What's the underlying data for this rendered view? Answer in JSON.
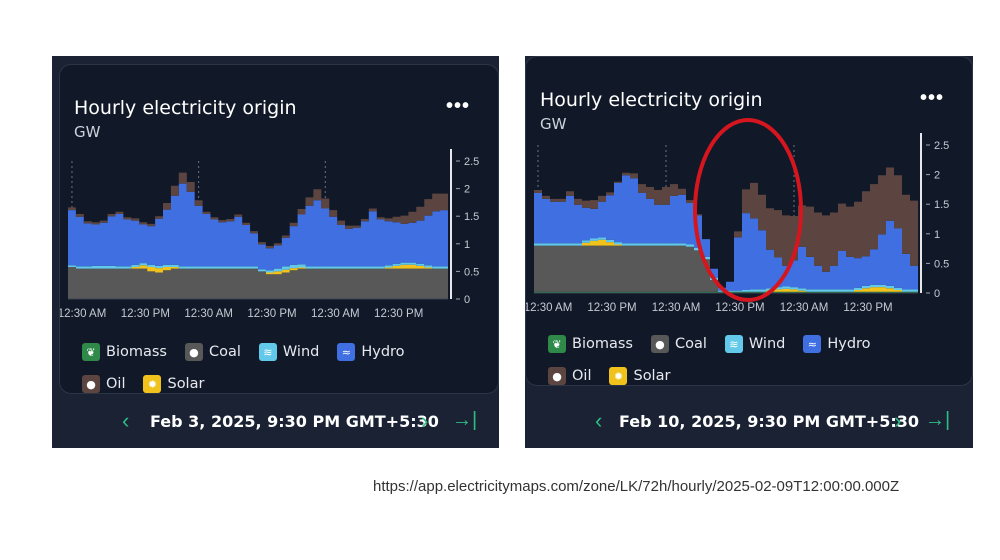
{
  "url": "https://app.electricitymaps.com/zone/LK/72h/hourly/2025-02-09T12:00:00.000Z",
  "legend": [
    {
      "name": "Biomass",
      "color": "#2f8a4a",
      "icon": "leaf-icon"
    },
    {
      "name": "Coal",
      "color": "#585858",
      "icon": "drop-icon"
    },
    {
      "name": "Wind",
      "color": "#62c9ea",
      "icon": "wind-icon"
    },
    {
      "name": "Hydro",
      "color": "#3f6fe0",
      "icon": "waves-icon"
    },
    {
      "name": "Oil",
      "color": "#5c4540",
      "icon": "drop-icon"
    },
    {
      "name": "Solar",
      "color": "#f1c21b",
      "icon": "sun-icon"
    }
  ],
  "panels": [
    {
      "title": "Hourly electricity origin",
      "unit": "GW",
      "more": "•••",
      "date": "Feb 3, 2025, 9:30 PM GMT+5:30",
      "prev": "‹",
      "next": "›",
      "last": "→|"
    },
    {
      "title": "Hourly electricity origin",
      "unit": "GW",
      "more": "•••",
      "date": "Feb 10, 2025, 9:30 PM GMT+5:30",
      "prev": "‹",
      "next": "›",
      "last": "→|"
    }
  ],
  "chart_data": [
    {
      "type": "area",
      "title": "Hourly electricity origin",
      "ylabel": "GW",
      "ylim": [
        0,
        2.5
      ],
      "yticks": [
        0,
        0.5,
        1,
        1.5,
        2,
        2.5
      ],
      "xticks": [
        "12:30 AM",
        "12:30 PM",
        "12:30 AM",
        "12:30 PM",
        "12:30 AM",
        "12:30 PM"
      ],
      "stack_order": [
        "Coal",
        "Solar",
        "Wind",
        "Hydro",
        "Oil"
      ],
      "series": [
        {
          "name": "Coal",
          "values": [
            0.58,
            0.55,
            0.55,
            0.55,
            0.55,
            0.55,
            0.55,
            0.55,
            0.55,
            0.55,
            0.5,
            0.48,
            0.52,
            0.55,
            0.55,
            0.55,
            0.55,
            0.55,
            0.55,
            0.55,
            0.55,
            0.55,
            0.55,
            0.55,
            0.5,
            0.45,
            0.45,
            0.48,
            0.52,
            0.55,
            0.55,
            0.55,
            0.55,
            0.55,
            0.55,
            0.55,
            0.55,
            0.55,
            0.55,
            0.55,
            0.55,
            0.55,
            0.55,
            0.55,
            0.55,
            0.55,
            0.55,
            0.55
          ]
        },
        {
          "name": "Solar",
          "values": [
            0,
            0,
            0,
            0,
            0,
            0,
            0,
            0,
            0.03,
            0.06,
            0.08,
            0.08,
            0.06,
            0.03,
            0,
            0,
            0,
            0,
            0,
            0,
            0,
            0,
            0,
            0,
            0,
            0.03,
            0.05,
            0.05,
            0.04,
            0.02,
            0,
            0,
            0,
            0,
            0,
            0,
            0,
            0,
            0,
            0,
            0.02,
            0.05,
            0.07,
            0.07,
            0.05,
            0.02,
            0,
            0
          ]
        },
        {
          "name": "Wind",
          "values": [
            0.03,
            0.04,
            0.04,
            0.05,
            0.05,
            0.05,
            0.04,
            0.04,
            0.04,
            0.04,
            0.04,
            0.04,
            0.04,
            0.04,
            0.04,
            0.04,
            0.04,
            0.04,
            0.04,
            0.04,
            0.04,
            0.04,
            0.04,
            0.04,
            0.04,
            0.04,
            0.05,
            0.06,
            0.06,
            0.06,
            0.04,
            0.04,
            0.04,
            0.04,
            0.04,
            0.04,
            0.04,
            0.04,
            0.04,
            0.04,
            0.04,
            0.04,
            0.04,
            0.04,
            0.04,
            0.04,
            0.04,
            0.04
          ]
        },
        {
          "name": "Hydro",
          "values": [
            1.0,
            0.9,
            0.78,
            0.75,
            0.78,
            0.9,
            0.95,
            0.85,
            0.8,
            0.7,
            0.7,
            0.85,
            1.0,
            1.25,
            1.5,
            1.35,
            1.1,
            0.95,
            0.85,
            0.8,
            0.82,
            0.9,
            0.75,
            0.6,
            0.45,
            0.4,
            0.42,
            0.52,
            0.7,
            0.9,
            1.1,
            1.2,
            1.05,
            0.9,
            0.75,
            0.68,
            0.7,
            0.82,
            1.0,
            0.85,
            0.8,
            0.75,
            0.7,
            0.72,
            0.78,
            0.9,
            1.0,
            1.02
          ]
        },
        {
          "name": "Oil",
          "values": [
            0.05,
            0.05,
            0.04,
            0.04,
            0.04,
            0.04,
            0.04,
            0.04,
            0.04,
            0.04,
            0.04,
            0.05,
            0.12,
            0.18,
            0.2,
            0.18,
            0.1,
            0.04,
            0.04,
            0.04,
            0.04,
            0.04,
            0.04,
            0.04,
            0.04,
            0.04,
            0.04,
            0.04,
            0.06,
            0.1,
            0.15,
            0.2,
            0.18,
            0.12,
            0.08,
            0.06,
            0.04,
            0.04,
            0.05,
            0.04,
            0.05,
            0.1,
            0.15,
            0.2,
            0.25,
            0.3,
            0.32,
            0.3
          ]
        }
      ]
    },
    {
      "type": "area",
      "title": "Hourly electricity origin",
      "ylabel": "GW",
      "ylim": [
        0,
        2.5
      ],
      "yticks": [
        0,
        0.5,
        1,
        1.5,
        2,
        2.5
      ],
      "xticks": [
        "12:30 AM",
        "12:30 PM",
        "12:30 AM",
        "12:30 PM",
        "12:30 AM",
        "12:30 PM"
      ],
      "stack_order": [
        "Biomass",
        "Coal",
        "Solar",
        "Wind",
        "Hydro",
        "Oil"
      ],
      "series": [
        {
          "name": "Biomass",
          "values": [
            0.02,
            0.02,
            0.02,
            0.02,
            0.02,
            0.02,
            0.02,
            0.02,
            0.02,
            0.02,
            0.02,
            0.02,
            0.02,
            0.02,
            0.02,
            0.02,
            0.02,
            0.02,
            0.02,
            0.02,
            0.02,
            0.02,
            0.02,
            0.02,
            0.02,
            0.02,
            0.02,
            0.02,
            0.02,
            0.02,
            0.02,
            0.02,
            0.02,
            0.02,
            0.02,
            0.02,
            0.02,
            0.02,
            0.02,
            0.02,
            0.02,
            0.02,
            0.02,
            0.02,
            0.02,
            0.02,
            0.02,
            0.02
          ]
        },
        {
          "name": "Coal",
          "values": [
            0.78,
            0.78,
            0.78,
            0.78,
            0.78,
            0.78,
            0.78,
            0.78,
            0.78,
            0.78,
            0.78,
            0.78,
            0.78,
            0.78,
            0.78,
            0.78,
            0.78,
            0.78,
            0.78,
            0.76,
            0.7,
            0.55,
            0.2,
            0,
            0,
            0,
            0,
            0,
            0,
            0,
            0,
            0,
            0,
            0,
            0,
            0,
            0,
            0,
            0,
            0,
            0,
            0,
            0,
            0,
            0,
            0,
            0,
            0
          ]
        },
        {
          "name": "Solar",
          "values": [
            0,
            0,
            0,
            0,
            0,
            0,
            0.05,
            0.08,
            0.1,
            0.06,
            0.02,
            0,
            0,
            0,
            0,
            0,
            0,
            0,
            0,
            0,
            0,
            0,
            0,
            0,
            0,
            0,
            0,
            0,
            0,
            0.02,
            0.04,
            0.05,
            0.04,
            0.02,
            0,
            0,
            0,
            0,
            0,
            0,
            0.03,
            0.06,
            0.08,
            0.08,
            0.06,
            0.03,
            0,
            0
          ]
        },
        {
          "name": "Wind",
          "values": [
            0.04,
            0.04,
            0.04,
            0.04,
            0.04,
            0.04,
            0.04,
            0.04,
            0.04,
            0.04,
            0.04,
            0.04,
            0.04,
            0.04,
            0.04,
            0.04,
            0.04,
            0.04,
            0.04,
            0.04,
            0.04,
            0.04,
            0.04,
            0.02,
            0.02,
            0.02,
            0.03,
            0.04,
            0.04,
            0.04,
            0.04,
            0.04,
            0.04,
            0.04,
            0.04,
            0.04,
            0.04,
            0.04,
            0.04,
            0.04,
            0.04,
            0.04,
            0.04,
            0.04,
            0.04,
            0.04,
            0.04,
            0.04
          ]
        },
        {
          "name": "Hydro",
          "values": [
            0.85,
            0.75,
            0.7,
            0.7,
            0.8,
            0.65,
            0.55,
            0.5,
            0.6,
            0.75,
            1.0,
            1.15,
            1.1,
            0.85,
            0.75,
            0.65,
            0.65,
            0.8,
            0.82,
            0.7,
            0.55,
            0.3,
            0.15,
            0.05,
            0.15,
            0.9,
            1.3,
            1.2,
            1.0,
            0.65,
            0.5,
            0.35,
            0.45,
            0.7,
            0.55,
            0.4,
            0.3,
            0.4,
            0.65,
            0.55,
            0.5,
            0.5,
            0.6,
            0.85,
            1.1,
            1.0,
            0.6,
            0.4
          ]
        },
        {
          "name": "Oil",
          "values": [
            0.05,
            0.05,
            0.05,
            0.05,
            0.08,
            0.1,
            0.12,
            0.15,
            0.1,
            0.05,
            0.02,
            0.04,
            0.08,
            0.15,
            0.2,
            0.25,
            0.3,
            0.2,
            0.1,
            0.05,
            0.02,
            0,
            0,
            0,
            0,
            0.1,
            0.4,
            0.6,
            0.6,
            0.7,
            0.8,
            0.85,
            0.75,
            0.7,
            0.85,
            0.9,
            0.95,
            0.9,
            0.8,
            0.85,
            0.95,
            1.1,
            1.1,
            1.0,
            0.9,
            0.9,
            1.0,
            1.1
          ]
        }
      ]
    }
  ]
}
